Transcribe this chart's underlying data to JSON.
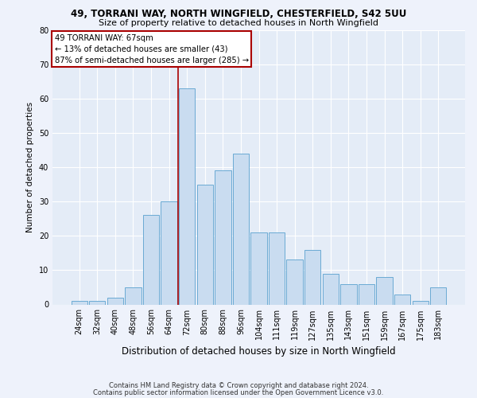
{
  "title1": "49, TORRANI WAY, NORTH WINGFIELD, CHESTERFIELD, S42 5UU",
  "title2": "Size of property relative to detached houses in North Wingfield",
  "xlabel": "Distribution of detached houses by size in North Wingfield",
  "ylabel": "Number of detached properties",
  "categories": [
    "24sqm",
    "32sqm",
    "40sqm",
    "48sqm",
    "56sqm",
    "64sqm",
    "72sqm",
    "80sqm",
    "88sqm",
    "96sqm",
    "104sqm",
    "111sqm",
    "119sqm",
    "127sqm",
    "135sqm",
    "143sqm",
    "151sqm",
    "159sqm",
    "167sqm",
    "175sqm",
    "183sqm"
  ],
  "values": [
    1,
    1,
    2,
    5,
    26,
    30,
    63,
    35,
    39,
    44,
    21,
    21,
    13,
    16,
    9,
    6,
    6,
    8,
    3,
    1,
    5
  ],
  "bar_color": "#c9dcf0",
  "bar_edge_color": "#6aaad4",
  "vline_x": 5.5,
  "vline_color": "#aa0000",
  "annotation_text": "49 TORRANI WAY: 67sqm\n← 13% of detached houses are smaller (43)\n87% of semi-detached houses are larger (285) →",
  "annotation_box_color": "#aa0000",
  "ylim": [
    0,
    80
  ],
  "yticks": [
    0,
    10,
    20,
    30,
    40,
    50,
    60,
    70,
    80
  ],
  "footer1": "Contains HM Land Registry data © Crown copyright and database right 2024.",
  "footer2": "Contains public sector information licensed under the Open Government Licence v3.0.",
  "bg_color": "#eef2fb",
  "plot_bg_color": "#e4ecf7",
  "grid_color": "#ffffff",
  "title1_fontsize": 8.5,
  "title2_fontsize": 8.0,
  "ylabel_fontsize": 7.5,
  "xlabel_fontsize": 8.5,
  "tick_fontsize": 7,
  "footer_fontsize": 6.0
}
